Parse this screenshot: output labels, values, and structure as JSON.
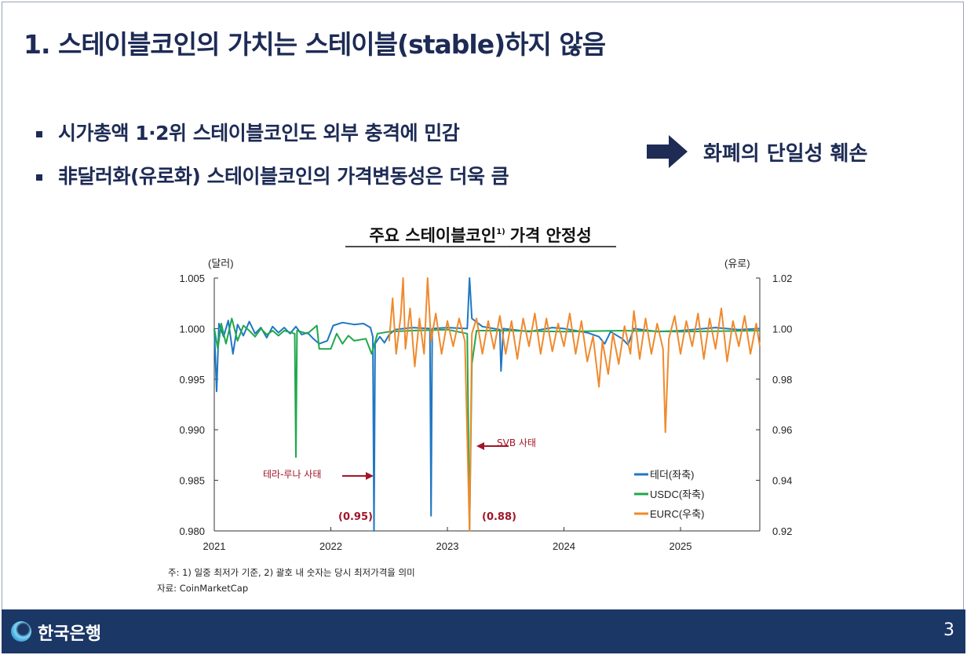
{
  "slide": {
    "title": "1. 스테이블코인의 가치는 스테이블(stable)하지 않음",
    "bullets": [
      "시가총액 1·2위 스테이블코인도 외부 충격에 민감",
      "非달러화(유로화) 스테이블코인의 가격변동성은 더욱 큼"
    ],
    "conclusion": "화폐의 단일성 훼손",
    "footer": {
      "bank_name": "한국은행",
      "page_number": "3"
    },
    "colors": {
      "navy": "#1d2b55",
      "footer": "#1b3766",
      "annotation": "#a01628"
    }
  },
  "chart_data": {
    "type": "line",
    "title": "주요 스테이블코인",
    "title_sup": "1)",
    "title_suffix": "가격 안정성",
    "ylabel_left": "(달러)",
    "ylabel_right": "(유로)",
    "xlim": [
      2021.0,
      2025.68
    ],
    "ylim_left": [
      0.98,
      1.005
    ],
    "ylim_right": [
      0.92,
      1.02
    ],
    "x_ticks": [
      "2021",
      "2022",
      "2023",
      "2024",
      "2025"
    ],
    "y_ticks_left": [
      "1.005",
      "1.000",
      "0.995",
      "0.990",
      "0.985",
      "0.980"
    ],
    "y_ticks_right": [
      "1.02",
      "1.00",
      "0.98",
      "0.96",
      "0.94",
      "0.92"
    ],
    "series": [
      {
        "name": "테더(좌축)",
        "axis": "left",
        "color": "#1f77c4",
        "points": [
          [
            2021.0,
            1.0
          ],
          [
            2021.02,
            0.9938
          ],
          [
            2021.04,
            1.0005
          ],
          [
            2021.08,
            0.9992
          ],
          [
            2021.12,
            1.0008
          ],
          [
            2021.16,
            0.9975
          ],
          [
            2021.2,
            1.0004
          ],
          [
            2021.25,
            0.9993
          ],
          [
            2021.3,
            1.0007
          ],
          [
            2021.35,
            0.9995
          ],
          [
            2021.4,
            1.0001
          ],
          [
            2021.45,
            0.9991
          ],
          [
            2021.5,
            1.0002
          ],
          [
            2021.55,
            0.9996
          ],
          [
            2021.6,
            1.0001
          ],
          [
            2021.65,
            0.9995
          ],
          [
            2021.7,
            1.0002
          ],
          [
            2021.75,
            0.9994
          ],
          [
            2021.8,
            0.9996
          ],
          [
            2021.85,
            0.999
          ],
          [
            2021.9,
            0.9985
          ],
          [
            2021.97,
            0.9988
          ],
          [
            2022.02,
            1.0003
          ],
          [
            2022.1,
            1.0006
          ],
          [
            2022.2,
            1.0004
          ],
          [
            2022.28,
            1.0005
          ],
          [
            2022.34,
            1.0001
          ],
          [
            2022.36,
            0.9992
          ],
          [
            2022.37,
            0.98
          ],
          [
            2022.38,
            0.9985
          ],
          [
            2022.42,
            0.9992
          ],
          [
            2022.46,
            0.9986
          ],
          [
            2022.5,
            0.9994
          ],
          [
            2022.55,
            0.9999
          ],
          [
            2022.7,
            1.0001
          ],
          [
            2022.85,
            1.0
          ],
          [
            2022.86,
            0.9815
          ],
          [
            2022.87,
            1.0
          ],
          [
            2023.0,
            1.0001
          ],
          [
            2023.17,
            1.0
          ],
          [
            2023.19,
            1.005
          ],
          [
            2023.21,
            1.001
          ],
          [
            2023.3,
            1.0002
          ],
          [
            2023.45,
            0.9999
          ],
          [
            2023.46,
            0.9958
          ],
          [
            2023.48,
            1.0
          ],
          [
            2023.7,
            0.9997
          ],
          [
            2023.9,
            1.0001
          ],
          [
            2024.0,
            1.0
          ],
          [
            2024.2,
            0.9996
          ],
          [
            2024.3,
            0.9992
          ],
          [
            2024.35,
            0.9985
          ],
          [
            2024.4,
            0.9997
          ],
          [
            2024.5,
            0.999
          ],
          [
            2024.55,
            0.9984
          ],
          [
            2024.6,
            1.0
          ],
          [
            2024.8,
            0.9997
          ],
          [
            2025.0,
            0.9998
          ],
          [
            2025.3,
            1.0001
          ],
          [
            2025.5,
            0.9999
          ],
          [
            2025.68,
            1.0
          ]
        ]
      },
      {
        "name": "USDC(좌축)",
        "axis": "left",
        "color": "#1fa84a",
        "points": [
          [
            2021.0,
            1.0
          ],
          [
            2021.03,
            0.998
          ],
          [
            2021.06,
            1.0005
          ],
          [
            2021.1,
            0.9985
          ],
          [
            2021.15,
            1.001
          ],
          [
            2021.2,
            0.9988
          ],
          [
            2021.25,
            1.0003
          ],
          [
            2021.3,
            0.9998
          ],
          [
            2021.35,
            0.9992
          ],
          [
            2021.4,
            1.0
          ],
          [
            2021.45,
            0.9994
          ],
          [
            2021.5,
            0.9998
          ],
          [
            2021.55,
            0.9993
          ],
          [
            2021.6,
            0.9998
          ],
          [
            2021.69,
            0.9995
          ],
          [
            2021.7,
            0.9873
          ],
          [
            2021.71,
            0.9998
          ],
          [
            2021.8,
            0.9995
          ],
          [
            2021.88,
            1.0003
          ],
          [
            2021.9,
            0.998
          ],
          [
            2022.0,
            0.998
          ],
          [
            2022.05,
            0.9995
          ],
          [
            2022.1,
            0.9985
          ],
          [
            2022.15,
            0.9993
          ],
          [
            2022.2,
            0.9988
          ],
          [
            2022.3,
            0.999
          ],
          [
            2022.35,
            0.9975
          ],
          [
            2022.4,
            0.9995
          ],
          [
            2022.5,
            0.9997
          ],
          [
            2022.7,
            0.9998
          ],
          [
            2023.0,
            0.9999
          ],
          [
            2023.17,
            0.9995
          ],
          [
            2023.19,
            0.98
          ],
          [
            2023.21,
            0.9965
          ],
          [
            2023.25,
            0.9998
          ],
          [
            2023.5,
            0.9998
          ],
          [
            2024.0,
            0.9997
          ],
          [
            2024.5,
            0.9998
          ],
          [
            2025.0,
            0.9997
          ],
          [
            2025.68,
            0.9998
          ]
        ]
      },
      {
        "name": "EURC(우축)",
        "axis": "right",
        "color": "#ef8a2e",
        "points": [
          [
            2022.5,
            0.995
          ],
          [
            2022.53,
            1.012
          ],
          [
            2022.56,
            0.99
          ],
          [
            2022.6,
            1.005
          ],
          [
            2022.62,
            1.02
          ],
          [
            2022.64,
            0.992
          ],
          [
            2022.68,
            1.008
          ],
          [
            2022.72,
            0.985
          ],
          [
            2022.76,
            1.004
          ],
          [
            2022.8,
            0.99
          ],
          [
            2022.83,
            1.02
          ],
          [
            2022.86,
            0.995
          ],
          [
            2022.9,
            1.006
          ],
          [
            2022.95,
            0.99
          ],
          [
            2023.0,
            1.003
          ],
          [
            2023.05,
            0.993
          ],
          [
            2023.1,
            1.004
          ],
          [
            2023.15,
            0.995
          ],
          [
            2023.19,
            0.92
          ],
          [
            2023.21,
            0.998
          ],
          [
            2023.25,
            1.004
          ],
          [
            2023.3,
            0.99
          ],
          [
            2023.35,
            1.003
          ],
          [
            2023.4,
            0.992
          ],
          [
            2023.45,
            1.005
          ],
          [
            2023.5,
            0.99
          ],
          [
            2023.55,
            1.003
          ],
          [
            2023.6,
            0.988
          ],
          [
            2023.65,
            1.004
          ],
          [
            2023.7,
            0.993
          ],
          [
            2023.75,
            1.006
          ],
          [
            2023.8,
            0.99
          ],
          [
            2023.85,
            1.004
          ],
          [
            2023.9,
            0.991
          ],
          [
            2023.95,
            1.002
          ],
          [
            2024.0,
            0.993
          ],
          [
            2024.05,
            1.006
          ],
          [
            2024.1,
            0.99
          ],
          [
            2024.15,
            1.003
          ],
          [
            2024.2,
            0.987
          ],
          [
            2024.25,
            0.997
          ],
          [
            2024.3,
            0.977
          ],
          [
            2024.33,
            0.995
          ],
          [
            2024.38,
            0.982
          ],
          [
            2024.42,
            0.998
          ],
          [
            2024.47,
            0.986
          ],
          [
            2024.52,
            1.001
          ],
          [
            2024.57,
            0.99
          ],
          [
            2024.6,
            1.007
          ],
          [
            2024.65,
            0.988
          ],
          [
            2024.7,
            1.004
          ],
          [
            2024.75,
            0.99
          ],
          [
            2024.8,
            1.002
          ],
          [
            2024.85,
            0.992
          ],
          [
            2024.87,
            0.959
          ],
          [
            2024.9,
            0.996
          ],
          [
            2024.95,
            1.005
          ],
          [
            2025.0,
            0.99
          ],
          [
            2025.05,
            1.003
          ],
          [
            2025.1,
            0.993
          ],
          [
            2025.15,
            1.006
          ],
          [
            2025.2,
            0.988
          ],
          [
            2025.25,
            1.004
          ],
          [
            2025.3,
            0.992
          ],
          [
            2025.35,
            1.008
          ],
          [
            2025.4,
            0.987
          ],
          [
            2025.45,
            1.003
          ],
          [
            2025.5,
            0.993
          ],
          [
            2025.55,
            1.005
          ],
          [
            2025.6,
            0.99
          ],
          [
            2025.65,
            1.002
          ],
          [
            2025.68,
            0.993
          ]
        ]
      }
    ],
    "annotations": {
      "terra_luna": "테라-루나 사태",
      "svb": "SVB 사태",
      "tether_low": "(0.95)",
      "usdc_low": "(0.88)"
    },
    "legend_position": "bottom-right",
    "notes": "주: 1) 일중 최저가 기준, 2) 괄호 내 숫자는 당시 최저가격을 의미",
    "source": "자료: CoinMarketCap"
  }
}
